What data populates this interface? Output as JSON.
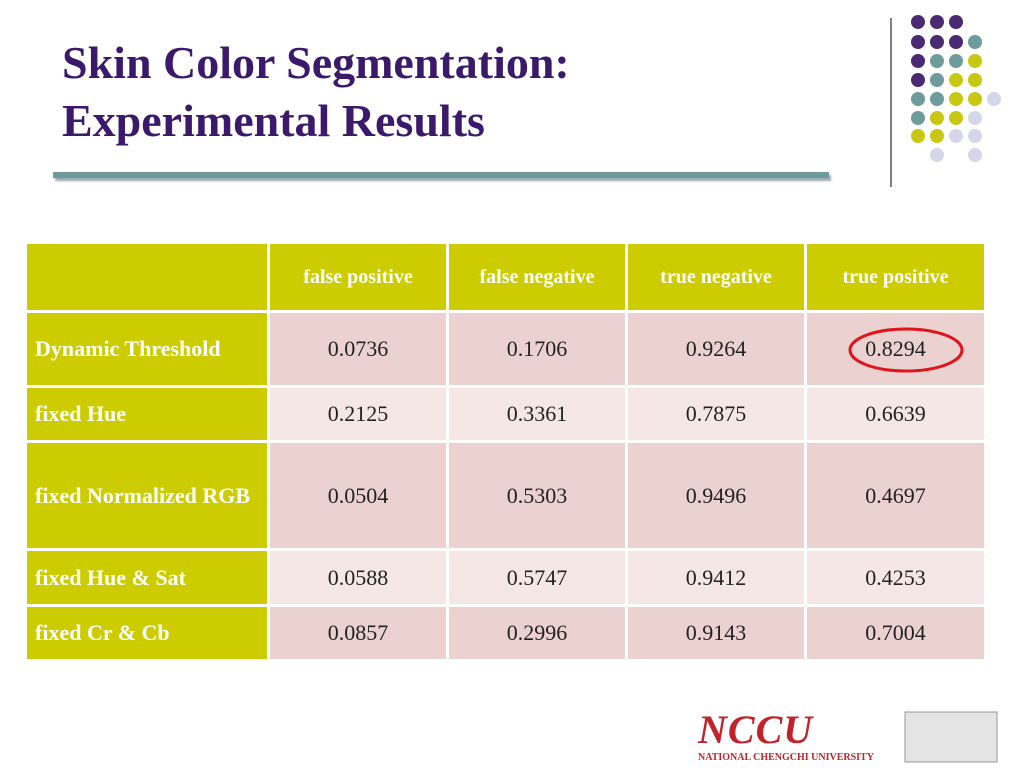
{
  "header": {
    "title": [
      "Skin Color Segmentation:",
      "Experimental Results"
    ]
  },
  "table": {
    "columns": [
      "",
      "false positive",
      "false negative",
      "true negative",
      "true positive"
    ],
    "rows": [
      [
        "Dynamic Threshold",
        "0.0736",
        "0.1706",
        "0.9264",
        "0.8294"
      ],
      [
        "fixed Hue",
        "0.2125",
        "0.3361",
        "0.7875",
        "0.6639"
      ],
      [
        "fixed Normalized RGB",
        "0.0504",
        "0.5303",
        "0.9496",
        "0.4697"
      ],
      [
        "fixed Hue & Sat",
        "0.0588",
        "0.5747",
        "0.9412",
        "0.4253"
      ],
      [
        "fixed Cr & Cb",
        "0.0857",
        "0.2996",
        "0.9143",
        "0.7004"
      ]
    ]
  },
  "logo": {
    "name": "NCCU",
    "subtitle": "NATIONAL CHENGCHI UNIVERSITY"
  }
}
